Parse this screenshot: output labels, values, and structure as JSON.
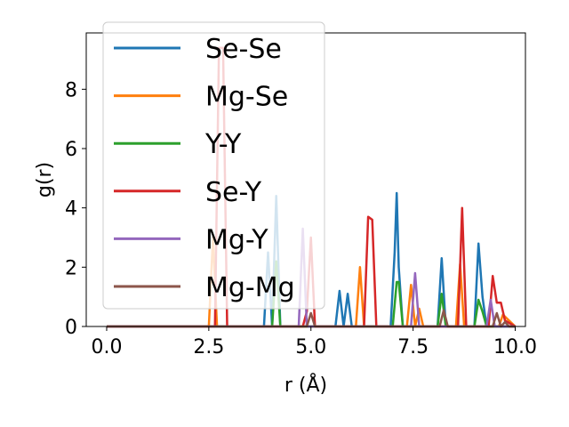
{
  "chart_data": {
    "type": "line",
    "title": "",
    "xlabel": "r (Å)",
    "ylabel": "g(r)",
    "xlim": [
      -0.5,
      10.25
    ],
    "ylim": [
      0,
      9.9
    ],
    "xticks": [
      0.0,
      2.5,
      5.0,
      7.5,
      10.0
    ],
    "xtick_labels": [
      "0.0",
      "2.5",
      "5.0",
      "7.5",
      "10.0"
    ],
    "yticks": [
      0,
      2,
      4,
      6,
      8
    ],
    "ytick_labels": [
      "0",
      "2",
      "4",
      "6",
      "8"
    ],
    "grid": false,
    "legend_position": "upper-left",
    "series": [
      {
        "name": "Se-Se",
        "color": "#1f77b4",
        "x": [
          0,
          3.85,
          3.95,
          4.05,
          4.15,
          4.25,
          4.35,
          5.6,
          5.7,
          5.8,
          5.9,
          6.0,
          6.1,
          6.95,
          7.05,
          7.1,
          7.15,
          7.25,
          8.1,
          8.2,
          8.3,
          9.0,
          9.1,
          9.2,
          9.3,
          10.0
        ],
        "y": [
          0,
          0,
          2.5,
          0,
          4.4,
          0,
          0,
          0,
          1.2,
          0,
          1.1,
          0,
          0,
          0,
          2.5,
          4.5,
          2.0,
          0,
          0,
          2.3,
          0,
          0,
          2.8,
          1.0,
          0,
          0
        ]
      },
      {
        "name": "Mg-Se",
        "color": "#ff7f0e",
        "x": [
          0,
          2.5,
          2.6,
          2.7,
          6.1,
          6.2,
          6.3,
          7.35,
          7.45,
          7.55,
          7.65,
          7.75,
          8.55,
          8.65,
          8.75,
          9.6,
          9.7,
          10.0
        ],
        "y": [
          0,
          0,
          3.0,
          0,
          0,
          2.0,
          0,
          0,
          1.4,
          0,
          0.6,
          0,
          0,
          2.1,
          0,
          0,
          0.4,
          0
        ]
      },
      {
        "name": "Y-Y",
        "color": "#2ca02c",
        "x": [
          0,
          4.05,
          4.15,
          4.25,
          7.0,
          7.1,
          7.15,
          7.25,
          8.1,
          8.2,
          8.3,
          9.0,
          9.1,
          9.2,
          9.3,
          10.0
        ],
        "y": [
          0,
          0,
          2.2,
          0,
          0,
          1.5,
          1.5,
          0,
          0,
          1.1,
          0,
          0,
          0.9,
          0.5,
          0,
          0
        ]
      },
      {
        "name": "Se-Y",
        "color": "#d62728",
        "x": [
          0,
          2.65,
          2.75,
          2.8,
          2.85,
          2.95,
          4.8,
          4.9,
          5.0,
          5.1,
          6.3,
          6.4,
          6.5,
          6.6,
          8.6,
          8.7,
          8.8,
          9.35,
          9.45,
          9.55,
          9.65,
          9.75,
          10.0
        ],
        "y": [
          0,
          0,
          9.4,
          9.4,
          9.4,
          0,
          0,
          0.5,
          3.0,
          0,
          0,
          3.7,
          3.6,
          0,
          0,
          4.0,
          0,
          0,
          1.7,
          0.8,
          0.8,
          0.2,
          0
        ]
      },
      {
        "name": "Mg-Y",
        "color": "#9467bd",
        "x": [
          0,
          4.7,
          4.8,
          4.9,
          7.45,
          7.55,
          7.65,
          9.3,
          9.4,
          9.5,
          10.0
        ],
        "y": [
          0,
          0,
          3.3,
          0,
          0,
          1.8,
          0,
          0,
          0.9,
          0,
          0
        ]
      },
      {
        "name": "Mg-Mg",
        "color": "#8c564b",
        "x": [
          0,
          4.9,
          5.0,
          5.1,
          8.15,
          8.25,
          8.35,
          9.45,
          9.55,
          9.65,
          9.75,
          9.85,
          10.0
        ],
        "y": [
          0,
          0,
          0.45,
          0,
          0,
          0.55,
          0,
          0,
          0.45,
          0,
          0.15,
          0,
          0
        ]
      }
    ]
  }
}
